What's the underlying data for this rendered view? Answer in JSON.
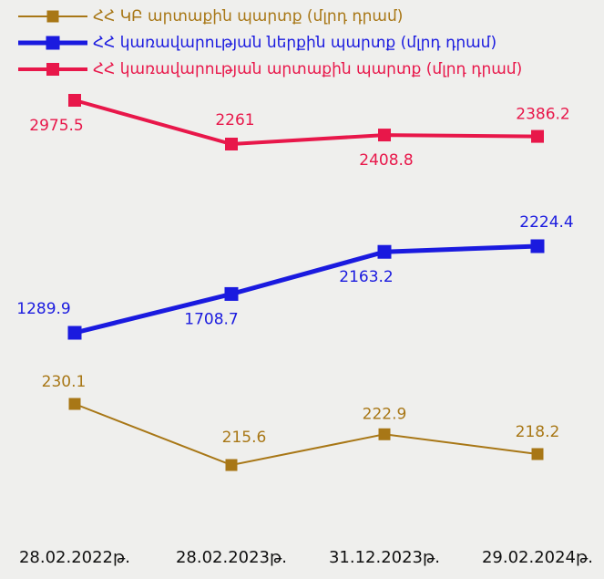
{
  "chart_data": {
    "type": "line",
    "categories": [
      "28.02.2022թ.",
      "28.02.2023թ.",
      "31.12.2023թ.",
      "29.02.2024թ."
    ],
    "series": [
      {
        "name": "ՀՀ ԿԲ արտաքին պարտք (մլրդ դրամ)",
        "color": "#a87716",
        "values": [
          230.1,
          215.6,
          222.9,
          218.2
        ]
      },
      {
        "name": "ՀՀ կառավարության ներքին պարտք (մլրդ դրամ)",
        "color": "#1a1adf",
        "values": [
          1289.9,
          1708.7,
          2163.2,
          2224.4
        ]
      },
      {
        "name": "ՀՀ կառավարության արտաքին պարտք (մլրդ դրամ)",
        "color": "#e8174a",
        "values": [
          2975.5,
          2261.0,
          2408.8,
          2386.2
        ]
      }
    ],
    "legend": "top"
  }
}
